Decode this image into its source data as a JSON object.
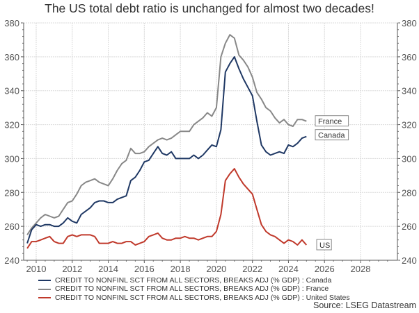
{
  "title": "The US total debt ratio is unchanged for almost two decades!",
  "source": "Source: LSEG Datastream",
  "chart_data": {
    "type": "line",
    "title": "The US total debt ratio is unchanged for almost two decades!",
    "xlabel": "",
    "ylabel": "",
    "xlim": [
      2009.3,
      2030.0
    ],
    "ylim": [
      240,
      380
    ],
    "x_ticks": [
      "2010",
      "2012",
      "2014",
      "2016",
      "2018",
      "2020",
      "2022",
      "2024",
      "2026",
      "2028"
    ],
    "x_tick_values": [
      2010,
      2012,
      2014,
      2016,
      2018,
      2020,
      2022,
      2024,
      2026,
      2028
    ],
    "y_ticks": [
      "240",
      "260",
      "280",
      "300",
      "320",
      "340",
      "360",
      "380"
    ],
    "y_tick_values": [
      240,
      260,
      280,
      300,
      320,
      340,
      360,
      380
    ],
    "grid": true,
    "legend_position": "bottom",
    "x": [
      2009.5,
      2009.75,
      2010.0,
      2010.25,
      2010.5,
      2010.75,
      2011.0,
      2011.25,
      2011.5,
      2011.75,
      2012.0,
      2012.25,
      2012.5,
      2012.75,
      2013.0,
      2013.25,
      2013.5,
      2013.75,
      2014.0,
      2014.25,
      2014.5,
      2014.75,
      2015.0,
      2015.25,
      2015.5,
      2015.75,
      2016.0,
      2016.25,
      2016.5,
      2016.75,
      2017.0,
      2017.25,
      2017.5,
      2017.75,
      2018.0,
      2018.25,
      2018.5,
      2018.75,
      2019.0,
      2019.25,
      2019.5,
      2019.75,
      2020.0,
      2020.25,
      2020.5,
      2020.75,
      2021.0,
      2021.25,
      2021.5,
      2021.75,
      2022.0,
      2022.25,
      2022.5,
      2022.75,
      2023.0,
      2023.25,
      2023.5,
      2023.75,
      2024.0,
      2024.25,
      2024.5,
      2024.75,
      2025.0
    ],
    "series": [
      {
        "name": "CREDIT TO NONFINL SCT FROM ALL SECTORS, BREAKS ADJ (% GDP) : Canada",
        "label": "Canada",
        "color": "#1f3864",
        "values": [
          250,
          258,
          261,
          260,
          261,
          261,
          260,
          260,
          262,
          265,
          263,
          262,
          267,
          269,
          271,
          274,
          275,
          275,
          274,
          274,
          276,
          277,
          278,
          287,
          289,
          293,
          298,
          299,
          303,
          307,
          303,
          302,
          304,
          300,
          300,
          300,
          300,
          302,
          300,
          302,
          305,
          308,
          307,
          317,
          351,
          356,
          360,
          353,
          347,
          342,
          337,
          322,
          308,
          304,
          302,
          303,
          304,
          303,
          308,
          307,
          309,
          312,
          313
        ]
      },
      {
        "name": "CREDIT TO NONFINL SCT FROM ALL SECTORS, BREAKS ADJ (% GDP) : France",
        "label": "France",
        "color": "#888888",
        "values": [
          255,
          259,
          262,
          265,
          267,
          266,
          265,
          266,
          270,
          274,
          275,
          279,
          284,
          286,
          287,
          288,
          286,
          285,
          284,
          288,
          293,
          297,
          299,
          306,
          303,
          303,
          304,
          307,
          309,
          311,
          312,
          311,
          312,
          314,
          316,
          316,
          316,
          320,
          322,
          324,
          327,
          325,
          330,
          360,
          368,
          373,
          371,
          361,
          358,
          354,
          348,
          339,
          335,
          330,
          328,
          324,
          321,
          323,
          320,
          319,
          323,
          323,
          322
        ]
      },
      {
        "name": "CREDIT TO NONFINL SCT FROM ALL SECTORS, BREAKS ADJ (% GDP) : United States",
        "label": "US",
        "color": "#c0392b",
        "values": [
          247,
          251,
          251,
          252,
          253,
          254,
          251,
          250,
          250,
          254,
          255,
          254,
          255,
          255,
          255,
          254,
          250,
          250,
          250,
          251,
          250,
          250,
          251,
          251,
          249,
          250,
          251,
          254,
          255,
          256,
          253,
          252,
          252,
          253,
          253,
          254,
          253,
          253,
          252,
          253,
          254,
          254,
          257,
          267,
          287,
          291,
          294,
          289,
          285,
          282,
          279,
          270,
          261,
          257,
          255,
          254,
          252,
          250,
          252,
          251,
          249,
          252,
          249
        ]
      }
    ]
  },
  "legend": [
    {
      "label": "CREDIT TO NONFINL SCT FROM ALL SECTORS, BREAKS ADJ (% GDP) : Canada",
      "color": "#1f3864"
    },
    {
      "label": "CREDIT TO NONFINL SCT FROM ALL SECTORS, BREAKS ADJ (% GDP) : France",
      "color": "#888888"
    },
    {
      "label": "CREDIT TO NONFINL SCT FROM ALL SECTORS, BREAKS ADJ (% GDP) : United States",
      "color": "#c0392b"
    }
  ],
  "end_labels": [
    "Canada",
    "France",
    "US"
  ]
}
